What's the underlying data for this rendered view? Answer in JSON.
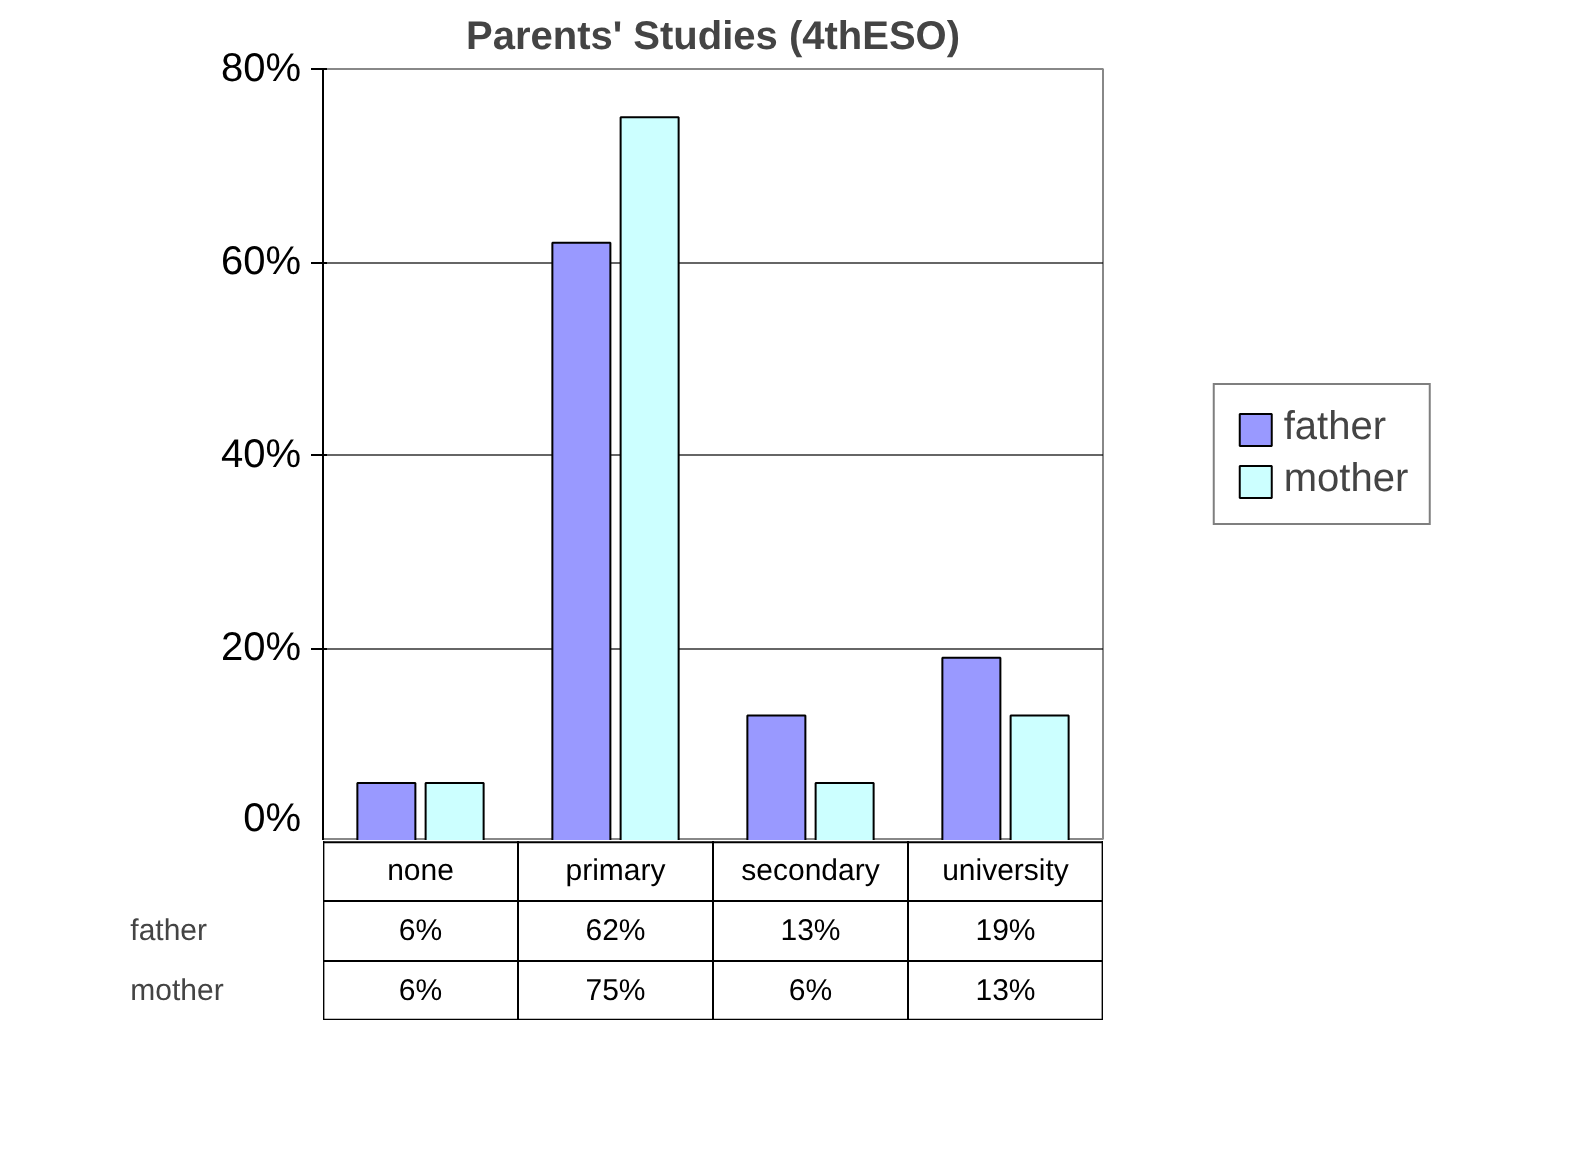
{
  "chart_data": {
    "type": "bar",
    "title": "Parents' Studies (4thESO)",
    "categories": [
      "none",
      "primary",
      "secondary",
      "university"
    ],
    "series": [
      {
        "name": "father",
        "color": "#9999ff",
        "values": [
          6,
          62,
          13,
          19
        ],
        "value_labels": [
          "6%",
          "62%",
          "13%",
          "19%"
        ]
      },
      {
        "name": "mother",
        "color": "#ccffff",
        "values": [
          6,
          75,
          6,
          13
        ],
        "value_labels": [
          "6%",
          "75%",
          "6%",
          "13%"
        ]
      }
    ],
    "ylim": [
      0,
      80
    ],
    "yticks": [
      {
        "value": 0,
        "label": "0%"
      },
      {
        "value": 20,
        "label": "20%"
      },
      {
        "value": 40,
        "label": "40%"
      },
      {
        "value": 60,
        "label": "60%"
      },
      {
        "value": 80,
        "label": "80%"
      }
    ],
    "grid": "y",
    "legend": "right"
  }
}
